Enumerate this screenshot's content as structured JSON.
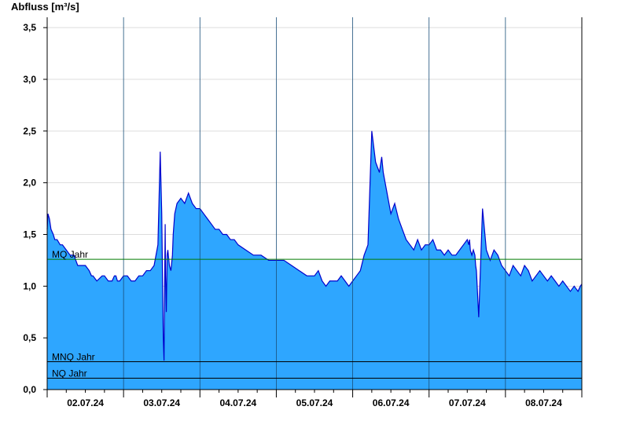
{
  "chart_data": {
    "type": "area",
    "title": "",
    "ylabel": "Abfluss [m³/s]",
    "xlabel": "",
    "ylim": [
      0,
      3.6
    ],
    "yticks": [
      0,
      0.5,
      1.0,
      1.5,
      2.0,
      2.5,
      3.0,
      3.5
    ],
    "ytick_labels": [
      "0,0",
      "0,5",
      "1,0",
      "1,5",
      "2,0",
      "2,5",
      "3,0",
      "3,5"
    ],
    "xlim": [
      1.0,
      8.0
    ],
    "day_labels": [
      "02.07.24",
      "03.07.24",
      "04.07.24",
      "05.07.24",
      "06.07.24",
      "07.07.24",
      "08.07.24"
    ],
    "grid": true,
    "colors": {
      "fill": "#2ea6ff",
      "line": "#0000cc",
      "mq": "#007a00",
      "ref": "#000000",
      "grid": "#dddddd"
    },
    "reference_lines": [
      {
        "name": "MQ Jahr",
        "value": 1.26
      },
      {
        "name": "MNQ Jahr",
        "value": 0.27
      },
      {
        "name": "NQ Jahr",
        "value": 0.11
      }
    ],
    "series": [
      {
        "x": [
          1.0,
          1.01,
          1.03,
          1.05,
          1.08,
          1.1,
          1.13,
          1.17,
          1.2,
          1.25,
          1.3,
          1.35,
          1.4,
          1.45,
          1.5,
          1.55,
          1.58,
          1.6,
          1.65,
          1.72,
          1.75,
          1.8,
          1.85,
          1.88,
          1.9,
          1.92,
          1.95,
          2.0,
          2.05,
          2.1,
          2.15,
          2.2,
          2.25,
          2.3,
          2.35,
          2.4,
          2.45,
          2.48,
          2.5,
          2.52,
          2.53,
          2.54,
          2.545,
          2.55,
          2.56,
          2.57,
          2.58,
          2.6,
          2.62,
          2.64,
          2.65,
          2.67,
          2.7,
          2.75,
          2.8,
          2.85,
          2.9,
          2.95,
          3.0,
          3.05,
          3.1,
          3.15,
          3.2,
          3.25,
          3.3,
          3.35,
          3.4,
          3.45,
          3.5,
          3.6,
          3.7,
          3.8,
          3.9,
          4.0,
          4.1,
          4.2,
          4.3,
          4.4,
          4.5,
          4.55,
          4.6,
          4.65,
          4.7,
          4.75,
          4.8,
          4.85,
          4.9,
          4.95,
          5.0,
          5.05,
          5.1,
          5.15,
          5.2,
          5.25,
          5.3,
          5.35,
          5.38,
          5.4,
          5.45,
          5.5,
          5.55,
          5.6,
          5.65,
          5.7,
          5.75,
          5.8,
          5.85,
          5.9,
          5.95,
          6.0,
          6.05,
          6.1,
          6.15,
          6.2,
          6.25,
          6.3,
          6.35,
          6.4,
          6.45,
          6.5,
          6.52,
          6.53,
          6.54,
          6.56,
          6.58,
          6.6,
          6.61,
          6.62,
          6.65,
          6.7,
          6.75,
          6.8,
          6.85,
          6.9,
          6.95,
          7.0,
          7.05,
          7.1,
          7.15,
          7.2,
          7.25,
          7.3,
          7.35,
          7.4,
          7.45,
          7.5,
          7.55,
          7.6,
          7.65,
          7.7,
          7.75,
          7.8,
          7.85,
          7.9,
          7.95,
          7.98,
          8.0
        ],
        "values": [
          1.55,
          1.7,
          1.65,
          1.55,
          1.5,
          1.45,
          1.45,
          1.4,
          1.4,
          1.35,
          1.3,
          1.3,
          1.2,
          1.2,
          1.2,
          1.15,
          1.1,
          1.1,
          1.05,
          1.1,
          1.1,
          1.05,
          1.05,
          1.1,
          1.1,
          1.05,
          1.05,
          1.1,
          1.1,
          1.05,
          1.05,
          1.1,
          1.1,
          1.15,
          1.15,
          1.2,
          1.4,
          2.3,
          1.7,
          0.5,
          0.28,
          1.2,
          1.6,
          1.1,
          0.75,
          1.3,
          1.35,
          1.2,
          1.15,
          1.3,
          1.5,
          1.7,
          1.8,
          1.85,
          1.8,
          1.9,
          1.8,
          1.75,
          1.75,
          1.7,
          1.65,
          1.6,
          1.55,
          1.55,
          1.5,
          1.5,
          1.45,
          1.45,
          1.4,
          1.35,
          1.3,
          1.3,
          1.25,
          1.25,
          1.25,
          1.2,
          1.15,
          1.1,
          1.1,
          1.15,
          1.05,
          1.0,
          1.05,
          1.05,
          1.05,
          1.1,
          1.05,
          1.0,
          1.05,
          1.1,
          1.15,
          1.3,
          1.4,
          2.5,
          2.2,
          2.1,
          2.25,
          2.1,
          1.9,
          1.7,
          1.8,
          1.65,
          1.55,
          1.45,
          1.4,
          1.35,
          1.45,
          1.35,
          1.4,
          1.4,
          1.45,
          1.35,
          1.35,
          1.3,
          1.35,
          1.3,
          1.3,
          1.35,
          1.4,
          1.45,
          1.4,
          1.45,
          1.35,
          1.3,
          1.35,
          1.3,
          1.2,
          1.15,
          0.7,
          1.75,
          1.35,
          1.25,
          1.35,
          1.3,
          1.2,
          1.15,
          1.1,
          1.2,
          1.15,
          1.1,
          1.2,
          1.15,
          1.05,
          1.1,
          1.15,
          1.1,
          1.05,
          1.1,
          1.05,
          1.0,
          1.05,
          1.0,
          0.95,
          1.0,
          0.95,
          1.0,
          1.02
        ]
      }
    ]
  }
}
